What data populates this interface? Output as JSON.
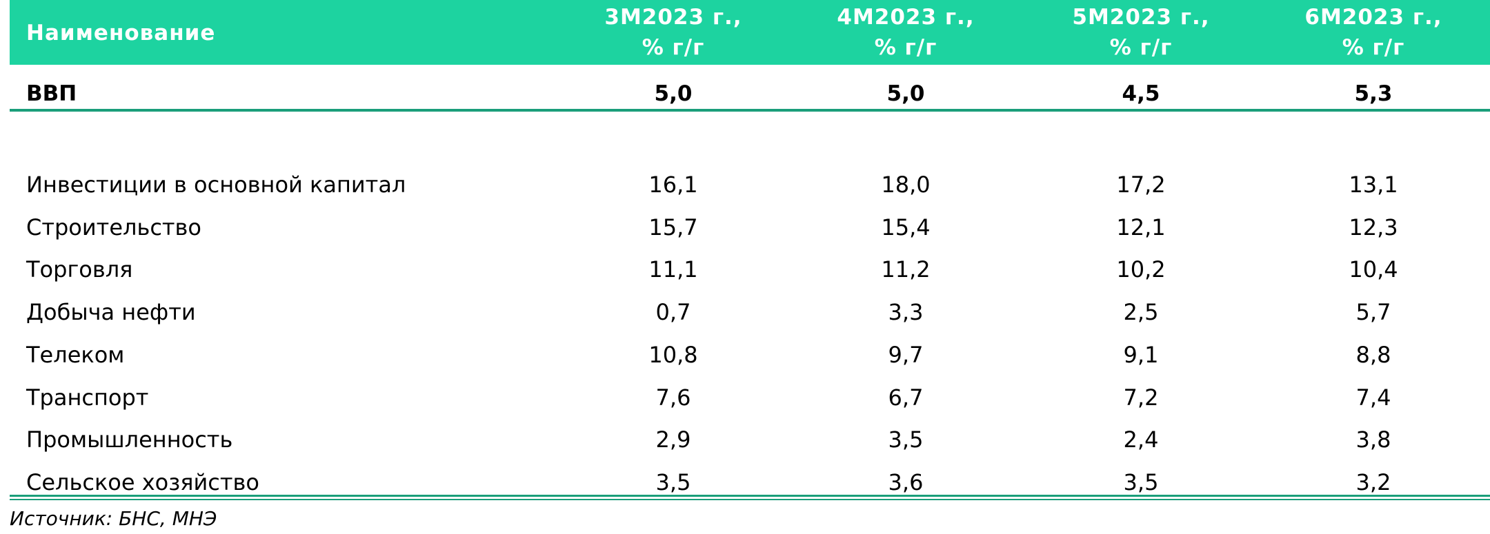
{
  "table": {
    "header": [
      "Наименование",
      "3М2023 г.,\n% г/г",
      "4М2023 г.,\n% г/г",
      "5М2023 г.,\n% г/г",
      "6М2023 г.,\n% г/г"
    ],
    "highlight_row": [
      "ВВП",
      "5,0",
      "5,0",
      "4,5",
      "5,3"
    ],
    "rows": [
      [
        "Инвестиции в основной капитал",
        "16,1",
        "18,0",
        "17,2",
        "13,1"
      ],
      [
        "Строительство",
        "15,7",
        "15,4",
        "12,1",
        "12,3"
      ],
      [
        "Торговля",
        "11,1",
        "11,2",
        "10,2",
        "10,4"
      ],
      [
        "Добыча нефти",
        "0,7",
        "3,3",
        "2,5",
        "5,7"
      ],
      [
        "Телеком",
        "10,8",
        "9,7",
        "9,1",
        "8,8"
      ],
      [
        "Транспорт",
        "7,6",
        "6,7",
        "7,2",
        "7,4"
      ],
      [
        "Промышленность",
        "2,9",
        "3,5",
        "2,4",
        "3,8"
      ],
      [
        "Сельское хозяйство",
        "3,5",
        "3,6",
        "3,5",
        "3,2"
      ]
    ]
  },
  "footer": {
    "source": "Источник: БНС, МНЭ"
  }
}
